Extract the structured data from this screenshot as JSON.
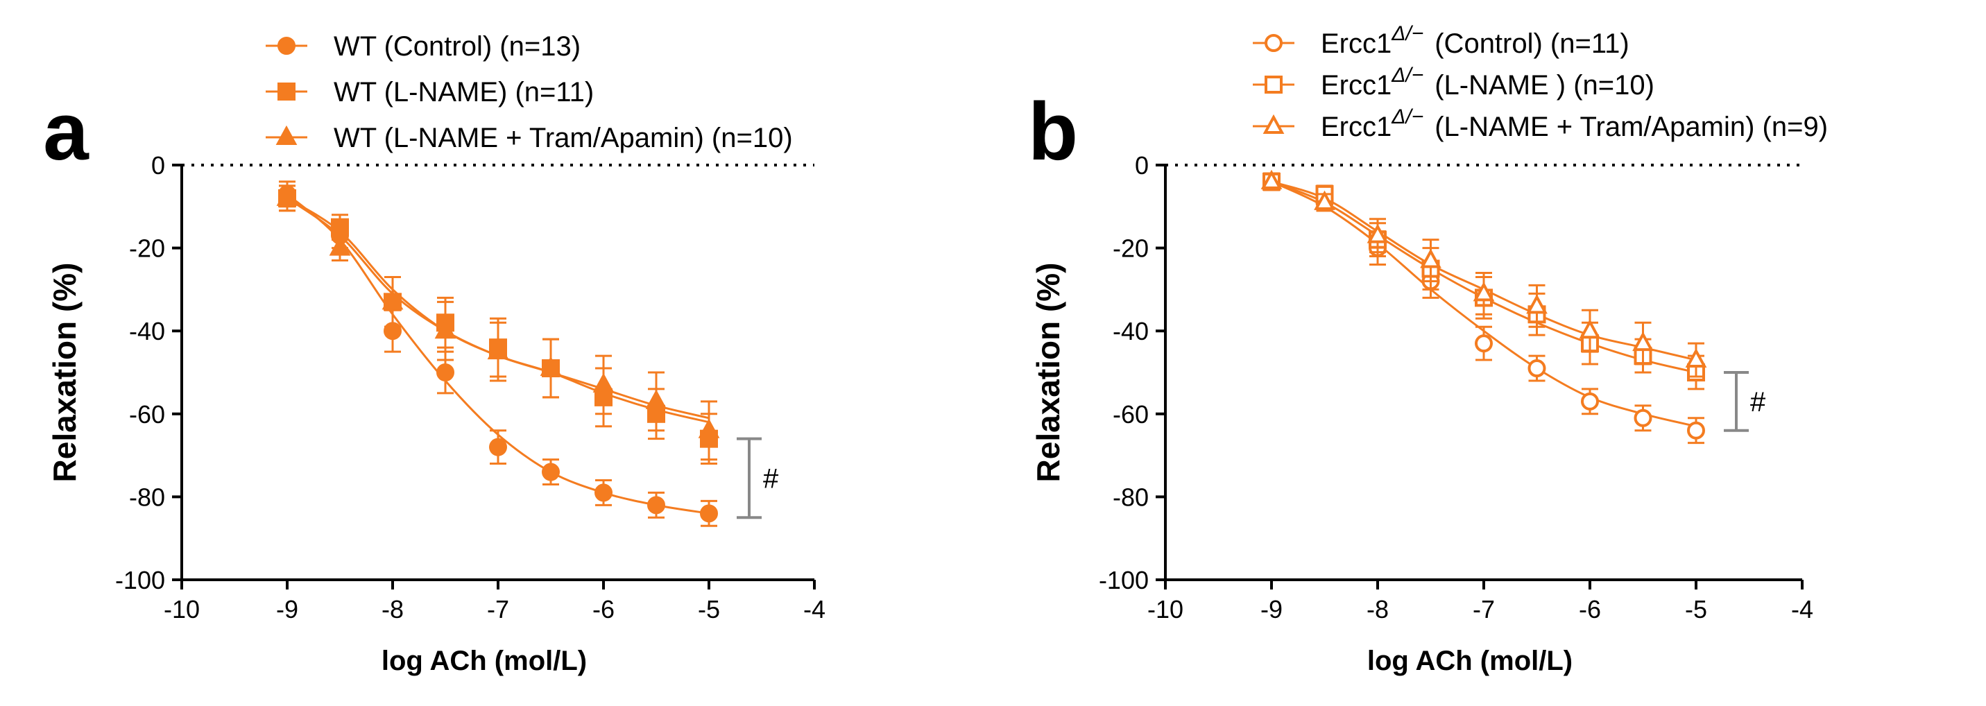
{
  "colors": {
    "series": "#f47c20",
    "axis": "#000000",
    "bracket": "#888888"
  },
  "chart_data": [
    {
      "type": "line",
      "panel_label": "a",
      "xlabel": "log ACh (mol/L)",
      "ylabel": "Relaxation (%)",
      "xlim": [
        -10,
        -4
      ],
      "ylim": [
        -100,
        0
      ],
      "xticks": [
        "-10",
        "-9",
        "-8",
        "-7",
        "-6",
        "-5",
        "-4"
      ],
      "yticks": [
        "0",
        "-20",
        "-40",
        "-60",
        "-80",
        "-100"
      ],
      "x": [
        -9,
        -8.5,
        -8,
        -7.5,
        -7,
        -6.5,
        -6,
        -5.5,
        -5
      ],
      "series": [
        {
          "name": "WT (Control) (n=13)",
          "marker": "circle",
          "filled": true,
          "values": [
            -7,
            -17,
            -40,
            -50,
            -68,
            -74,
            -79,
            -82,
            -84
          ],
          "errors": [
            3,
            3,
            5,
            5,
            4,
            3,
            3,
            3,
            3
          ]
        },
        {
          "name": "WT (L-NAME) (n=11)",
          "marker": "square",
          "filled": true,
          "values": [
            -8,
            -15,
            -33,
            -38,
            -44,
            -49,
            -56,
            -60,
            -66
          ],
          "errors": [
            3,
            3,
            6,
            6,
            7,
            7,
            7,
            6,
            6
          ]
        },
        {
          "name": "WT (L-NAME + Tram/Apamin) (n=10)",
          "marker": "triangle",
          "filled": true,
          "values": [
            -8,
            -20,
            -33,
            -40,
            -45,
            -49,
            -53,
            -57,
            -64
          ],
          "errors": [
            3,
            3,
            6,
            7,
            7,
            7,
            7,
            7,
            7
          ]
        }
      ],
      "fits": [
        [
          -7,
          -18,
          -36,
          -52,
          -65,
          -74,
          -79,
          -82,
          -84
        ],
        [
          -8,
          -16,
          -30,
          -40,
          -46,
          -50,
          -55,
          -59,
          -62
        ],
        [
          -8,
          -17,
          -31,
          -40,
          -46,
          -50,
          -54,
          -58,
          -61
        ]
      ],
      "annotation": {
        "text": "#",
        "y_range": [
          -85,
          -66
        ]
      }
    },
    {
      "type": "line",
      "panel_label": "b",
      "xlabel": "log ACh (mol/L)",
      "ylabel": "Relaxation (%)",
      "xlim": [
        -10,
        -4
      ],
      "ylim": [
        -100,
        0
      ],
      "xticks": [
        "-10",
        "-9",
        "-8",
        "-7",
        "-6",
        "-5",
        "-4"
      ],
      "yticks": [
        "0",
        "-20",
        "-40",
        "-60",
        "-80",
        "-100"
      ],
      "x": [
        -9,
        -8.5,
        -8,
        -7.5,
        -7,
        -6.5,
        -6,
        -5.5,
        -5
      ],
      "series": [
        {
          "name": "Ercc1Δ/− (Control) (n=11)",
          "legend_base": "Ercc1",
          "legend_sup": "Δ/−",
          "legend_rest": "(Control) (n=11)",
          "marker": "circle",
          "filled": false,
          "values": [
            -4,
            -9,
            -20,
            -28,
            -43,
            -49,
            -57,
            -61,
            -64
          ],
          "errors": [
            2,
            2,
            4,
            4,
            4,
            3,
            3,
            3,
            3
          ]
        },
        {
          "name": "Ercc1Δ/− (L-NAME) (n=10)",
          "legend_base": "Ercc1",
          "legend_sup": "Δ/−",
          "legend_rest": "(L-NAME ) (n=10)",
          "marker": "square",
          "filled": false,
          "values": [
            -4,
            -7,
            -18,
            -25,
            -32,
            -36,
            -43,
            -46,
            -50
          ],
          "errors": [
            2,
            2,
            4,
            5,
            5,
            5,
            5,
            4,
            4
          ]
        },
        {
          "name": "Ercc1Δ/− (L-NAME + Tram/Apamin) (n=9)",
          "legend_base": "Ercc1",
          "legend_sup": "Δ/−",
          "legend_rest": "(L-NAME + Tram/Apamin) (n=9)",
          "marker": "triangle",
          "filled": false,
          "values": [
            -4,
            -9,
            -17,
            -23,
            -31,
            -34,
            -40,
            -43,
            -47
          ],
          "errors": [
            2,
            2,
            4,
            5,
            5,
            5,
            5,
            5,
            4
          ]
        }
      ],
      "fits": [
        [
          -4,
          -10,
          -19,
          -30,
          -40,
          -49,
          -56,
          -60,
          -63
        ],
        [
          -4,
          -9,
          -17,
          -25,
          -32,
          -38,
          -43,
          -47,
          -50
        ],
        [
          -4,
          -8,
          -16,
          -24,
          -30,
          -36,
          -41,
          -44,
          -47
        ]
      ],
      "annotation": {
        "text": "#",
        "y_range": [
          -64,
          -50
        ]
      }
    }
  ]
}
